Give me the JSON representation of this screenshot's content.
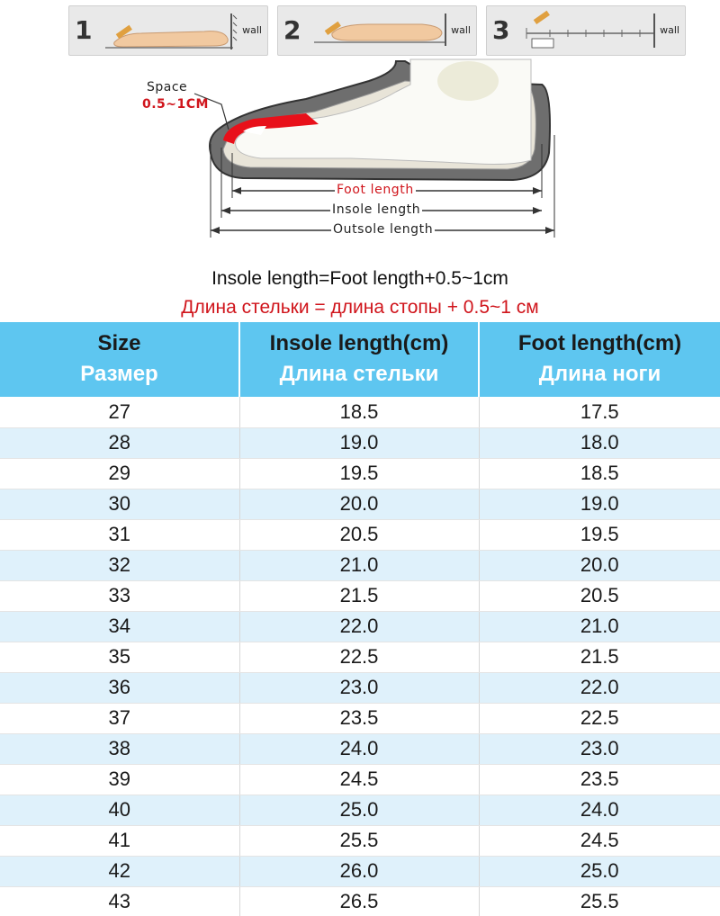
{
  "steps": [
    {
      "number": "1",
      "wall_label": "wall"
    },
    {
      "number": "2",
      "wall_label": "wall"
    },
    {
      "number": "3",
      "wall_label": "wall"
    }
  ],
  "diagram": {
    "space_label": "Space",
    "space_value": "0.5~1CM",
    "foot_length_label": "Foot length",
    "insole_length_label": "Insole length",
    "outsole_length_label": "Outsole length",
    "colors": {
      "accent_red": "#d0151c",
      "header_blue": "#5ec6f0",
      "row_alt": "#dff1fb"
    }
  },
  "formula": {
    "english": "Insole length=Foot length+0.5~1cm",
    "russian": "Длина стельки = длина стопы + 0.5~1 см"
  },
  "table": {
    "headers": [
      {
        "en": "Size",
        "ru": "Размер"
      },
      {
        "en": "Insole length(cm)",
        "ru": "Длина стельки"
      },
      {
        "en": "Foot length(cm)",
        "ru": "Длина ноги"
      }
    ],
    "rows": [
      [
        "27",
        "18.5",
        "17.5"
      ],
      [
        "28",
        "19.0",
        "18.0"
      ],
      [
        "29",
        "19.5",
        "18.5"
      ],
      [
        "30",
        "20.0",
        "19.0"
      ],
      [
        "31",
        "20.5",
        "19.5"
      ],
      [
        "32",
        "21.0",
        "20.0"
      ],
      [
        "33",
        "21.5",
        "20.5"
      ],
      [
        "34",
        "22.0",
        "21.0"
      ],
      [
        "35",
        "22.5",
        "21.5"
      ],
      [
        "36",
        "23.0",
        "22.0"
      ],
      [
        "37",
        "23.5",
        "22.5"
      ],
      [
        "38",
        "24.0",
        "23.0"
      ],
      [
        "39",
        "24.5",
        "23.5"
      ],
      [
        "40",
        "25.0",
        "24.0"
      ],
      [
        "41",
        "25.5",
        "24.5"
      ],
      [
        "42",
        "26.0",
        "25.0"
      ],
      [
        "43",
        "26.5",
        "25.5"
      ]
    ]
  }
}
